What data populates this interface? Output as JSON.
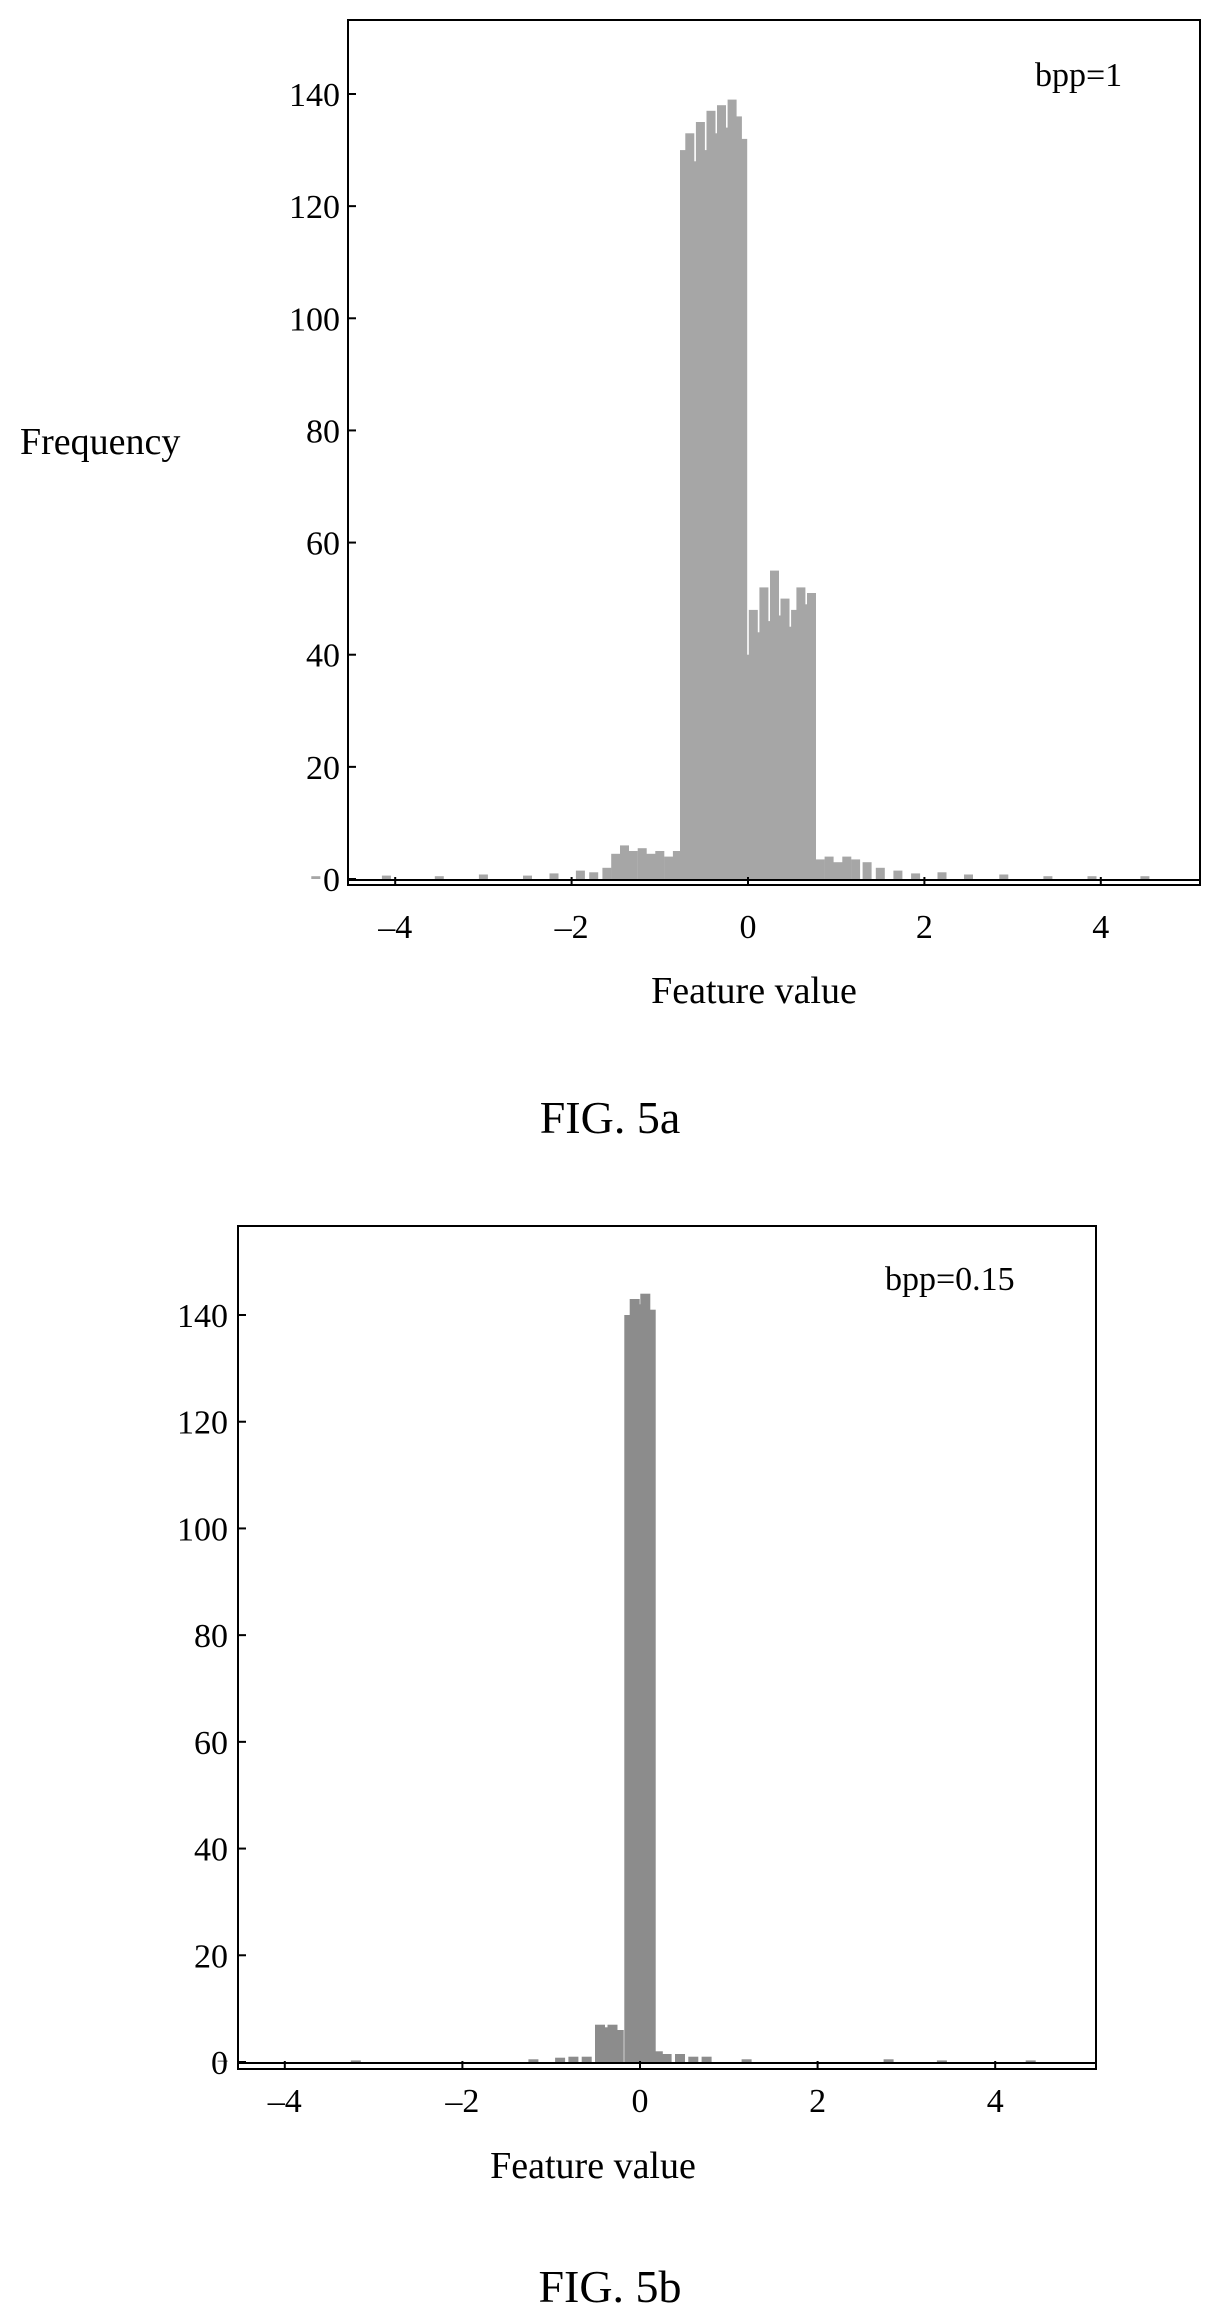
{
  "chart_data": [
    {
      "type": "bar",
      "annotation": "bpp=1",
      "caption": "FIG. 5a",
      "xlabel": "Feature value",
      "ylabel": "Frequency",
      "xlim": [
        -5,
        5
      ],
      "ylim": [
        0,
        155
      ],
      "xticks": [
        -4,
        -2,
        0,
        2,
        4
      ],
      "xtick_labels": [
        "–4",
        "–2",
        "0",
        "2",
        "4"
      ],
      "yticks": [
        0,
        20,
        40,
        60,
        80,
        100,
        120,
        140
      ],
      "ytick_labels": [
        "0",
        "20",
        "40",
        "60",
        "80",
        "100",
        "120",
        "140"
      ],
      "bar_color": "#a6a6a6",
      "bins": [
        {
          "x": -4.9,
          "y": 0.5
        },
        {
          "x": -4.1,
          "y": 0.6
        },
        {
          "x": -3.5,
          "y": 0.5
        },
        {
          "x": -3.0,
          "y": 0.8
        },
        {
          "x": -2.5,
          "y": 0.6
        },
        {
          "x": -2.2,
          "y": 1.0
        },
        {
          "x": -1.9,
          "y": 1.5
        },
        {
          "x": -1.75,
          "y": 1.2
        },
        {
          "x": -1.6,
          "y": 2.0
        },
        {
          "x": -1.5,
          "y": 4.5
        },
        {
          "x": -1.4,
          "y": 6.0
        },
        {
          "x": -1.3,
          "y": 5.0
        },
        {
          "x": -1.2,
          "y": 5.5
        },
        {
          "x": -1.1,
          "y": 4.5
        },
        {
          "x": -1.0,
          "y": 5.0
        },
        {
          "x": -0.9,
          "y": 4.0
        },
        {
          "x": -0.8,
          "y": 5.0
        },
        {
          "x": -0.72,
          "y": 130
        },
        {
          "x": -0.66,
          "y": 133
        },
        {
          "x": -0.6,
          "y": 128
        },
        {
          "x": -0.54,
          "y": 135
        },
        {
          "x": -0.48,
          "y": 130
        },
        {
          "x": -0.42,
          "y": 137
        },
        {
          "x": -0.36,
          "y": 133
        },
        {
          "x": -0.3,
          "y": 138
        },
        {
          "x": -0.24,
          "y": 134
        },
        {
          "x": -0.18,
          "y": 139
        },
        {
          "x": -0.12,
          "y": 136
        },
        {
          "x": -0.06,
          "y": 132
        },
        {
          "x": 0.0,
          "y": 40
        },
        {
          "x": 0.06,
          "y": 48
        },
        {
          "x": 0.12,
          "y": 44
        },
        {
          "x": 0.18,
          "y": 52
        },
        {
          "x": 0.24,
          "y": 46
        },
        {
          "x": 0.3,
          "y": 55
        },
        {
          "x": 0.36,
          "y": 47
        },
        {
          "x": 0.42,
          "y": 50
        },
        {
          "x": 0.48,
          "y": 45
        },
        {
          "x": 0.54,
          "y": 48
        },
        {
          "x": 0.6,
          "y": 52
        },
        {
          "x": 0.66,
          "y": 49
        },
        {
          "x": 0.72,
          "y": 51
        },
        {
          "x": 0.82,
          "y": 3.5
        },
        {
          "x": 0.92,
          "y": 4.0
        },
        {
          "x": 1.02,
          "y": 3.0
        },
        {
          "x": 1.12,
          "y": 4.0
        },
        {
          "x": 1.22,
          "y": 3.5
        },
        {
          "x": 1.35,
          "y": 3.0
        },
        {
          "x": 1.5,
          "y": 2.0
        },
        {
          "x": 1.7,
          "y": 1.5
        },
        {
          "x": 1.9,
          "y": 1.0
        },
        {
          "x": 2.2,
          "y": 1.2
        },
        {
          "x": 2.5,
          "y": 0.8
        },
        {
          "x": 2.9,
          "y": 0.8
        },
        {
          "x": 3.4,
          "y": 0.5
        },
        {
          "x": 3.9,
          "y": 0.5
        },
        {
          "x": 4.5,
          "y": 0.5
        }
      ]
    },
    {
      "type": "bar",
      "annotation": "bpp=0.15",
      "caption": "FIG. 5b",
      "xlabel": "Feature value",
      "ylabel": "",
      "xlim": [
        -5,
        5
      ],
      "ylim": [
        0,
        155
      ],
      "xticks": [
        -4,
        -2,
        0,
        2,
        4
      ],
      "xtick_labels": [
        "–4",
        "–2",
        "0",
        "2",
        "4"
      ],
      "yticks": [
        0,
        20,
        40,
        60,
        80,
        100,
        120,
        140
      ],
      "ytick_labels": [
        "0",
        "20",
        "40",
        "60",
        "80",
        "100",
        "120",
        "140"
      ],
      "bar_color": "#8c8c8c",
      "bins": [
        {
          "x": -4.7,
          "y": 0.3
        },
        {
          "x": -3.2,
          "y": 0.3
        },
        {
          "x": -1.2,
          "y": 0.5
        },
        {
          "x": -0.9,
          "y": 0.8
        },
        {
          "x": -0.75,
          "y": 1.0
        },
        {
          "x": -0.6,
          "y": 1.0
        },
        {
          "x": -0.45,
          "y": 7.0
        },
        {
          "x": -0.38,
          "y": 6.5
        },
        {
          "x": -0.31,
          "y": 7.0
        },
        {
          "x": -0.24,
          "y": 6.0
        },
        {
          "x": -0.12,
          "y": 140
        },
        {
          "x": -0.06,
          "y": 143
        },
        {
          "x": 0.0,
          "y": 142
        },
        {
          "x": 0.06,
          "y": 144
        },
        {
          "x": 0.12,
          "y": 141
        },
        {
          "x": 0.2,
          "y": 2.0
        },
        {
          "x": 0.3,
          "y": 1.5
        },
        {
          "x": 0.45,
          "y": 1.5
        },
        {
          "x": 0.6,
          "y": 1.0
        },
        {
          "x": 0.75,
          "y": 1.0
        },
        {
          "x": 1.2,
          "y": 0.5
        },
        {
          "x": 2.8,
          "y": 0.5
        },
        {
          "x": 3.4,
          "y": 0.3
        },
        {
          "x": 4.4,
          "y": 0.3
        }
      ]
    }
  ]
}
